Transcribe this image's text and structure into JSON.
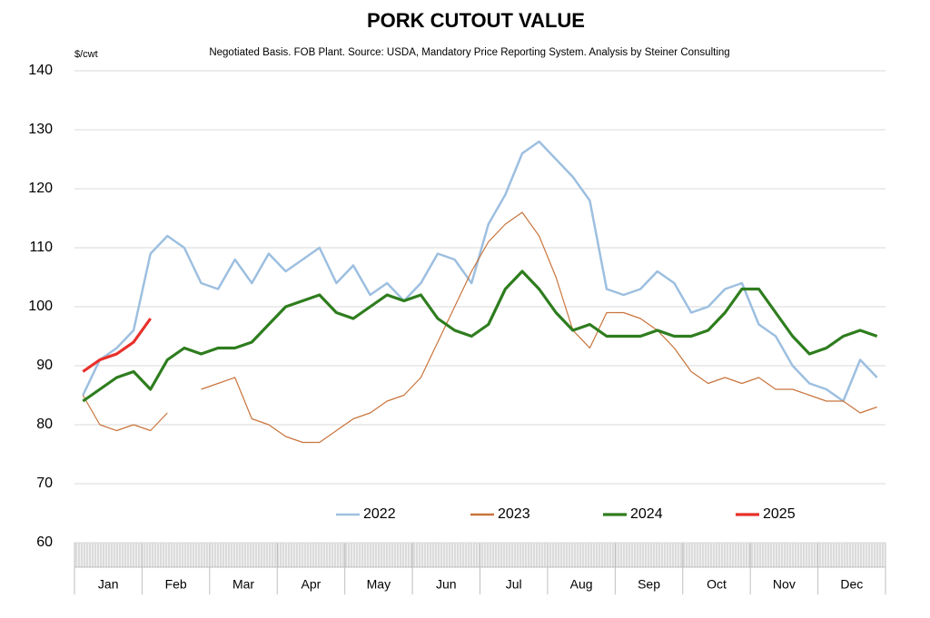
{
  "chart_data": {
    "type": "line",
    "title": "PORK CUTOUT VALUE",
    "subtitle": "Negotiated Basis.  FOB Plant.  Source: USDA, Mandatory Price Reporting System.  Analysis by Steiner Consulting",
    "y_label": "$/cwt",
    "categories": [
      "Jan",
      null,
      null,
      null,
      "Feb",
      null,
      null,
      null,
      "Mar",
      null,
      null,
      null,
      "Apr",
      null,
      null,
      null,
      "May",
      null,
      null,
      null,
      "Jun",
      null,
      null,
      null,
      "Jul",
      null,
      null,
      null,
      "Aug",
      null,
      null,
      null,
      "Sep",
      null,
      null,
      null,
      "Oct",
      null,
      null,
      null,
      "Nov",
      null,
      null,
      null,
      "Dec",
      null,
      null,
      null
    ],
    "series": [
      {
        "name": "2022",
        "color": "#9dbfe0",
        "values": [
          85,
          91,
          93,
          96,
          109,
          112,
          110,
          104,
          103,
          108,
          104,
          109,
          106,
          108,
          110,
          104,
          107,
          102,
          104,
          101,
          104,
          109,
          108,
          104,
          114,
          119,
          126,
          128,
          125,
          122,
          118,
          103,
          102,
          103,
          106,
          104,
          99,
          100,
          103,
          104,
          97,
          95,
          90,
          87,
          86,
          84,
          91,
          88
        ]
      },
      {
        "name": "2023",
        "color": "#c8743c",
        "values": [
          85,
          80,
          79,
          80,
          79,
          82,
          null,
          86,
          87,
          88,
          81,
          80,
          78,
          77,
          77,
          79,
          81,
          82,
          84,
          85,
          88,
          94,
          100,
          106,
          111,
          114,
          116,
          112,
          105,
          96,
          93,
          99,
          99,
          98,
          96,
          93,
          89,
          87,
          88,
          87,
          88,
          86,
          86,
          85,
          84,
          84,
          82,
          83
        ]
      },
      {
        "name": "2024",
        "color": "#2e7d1e",
        "values": [
          84,
          86,
          88,
          89,
          86,
          91,
          93,
          92,
          93,
          93,
          94,
          97,
          100,
          101,
          102,
          99,
          98,
          100,
          102,
          101,
          102,
          98,
          96,
          95,
          97,
          103,
          106,
          103,
          99,
          96,
          97,
          95,
          95,
          95,
          96,
          95,
          95,
          96,
          99,
          103,
          103,
          99,
          95,
          92,
          93,
          95,
          96,
          95
        ]
      },
      {
        "name": "2025",
        "color": "#e8302a",
        "values": [
          89,
          91,
          92,
          94,
          98,
          null,
          null,
          null,
          null,
          null,
          null,
          null,
          null,
          null,
          null,
          null,
          null,
          null,
          null,
          null,
          null,
          null,
          null,
          null,
          null,
          null,
          null,
          null,
          null,
          null,
          null,
          null,
          null,
          null,
          null,
          null,
          null,
          null,
          null,
          null,
          null,
          null,
          null,
          null,
          null,
          null,
          null,
          null
        ]
      }
    ],
    "ylim": [
      60,
      140
    ],
    "yticks": [
      60,
      70,
      80,
      90,
      100,
      110,
      120,
      130,
      140
    ],
    "grid": true
  }
}
